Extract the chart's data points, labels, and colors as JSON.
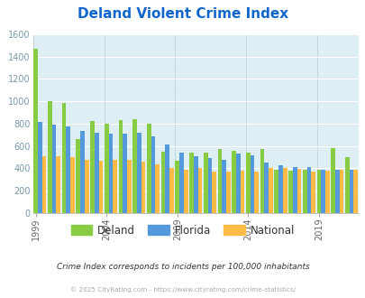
{
  "title": "Deland Violent Crime Index",
  "years": [
    1999,
    2000,
    2001,
    2002,
    2003,
    2004,
    2005,
    2006,
    2007,
    2008,
    2009,
    2010,
    2011,
    2012,
    2013,
    2014,
    2015,
    2016,
    2017,
    2018,
    2019,
    2020,
    2021
  ],
  "deland": [
    1470,
    1005,
    985,
    665,
    825,
    800,
    835,
    840,
    800,
    550,
    465,
    540,
    545,
    575,
    555,
    545,
    575,
    390,
    380,
    390,
    390,
    580,
    500
  ],
  "florida": [
    815,
    795,
    775,
    735,
    720,
    710,
    710,
    720,
    690,
    610,
    540,
    510,
    490,
    480,
    530,
    520,
    455,
    430,
    415,
    410,
    385,
    385,
    385
  ],
  "national": [
    505,
    505,
    500,
    475,
    465,
    475,
    475,
    460,
    435,
    405,
    390,
    400,
    375,
    370,
    380,
    375,
    400,
    405,
    395,
    375,
    380,
    385,
    385
  ],
  "deland_color": "#88cc44",
  "florida_color": "#5599dd",
  "national_color": "#ffbb44",
  "plot_bg": "#ddeef4",
  "ytick_color": "#7799aa",
  "title_color": "#1166cc",
  "xlabel_years": [
    1999,
    2004,
    2009,
    2014,
    2019
  ],
  "ylim": [
    0,
    1600
  ],
  "yticks": [
    0,
    200,
    400,
    600,
    800,
    1000,
    1200,
    1400,
    1600
  ],
  "subtitle": "Crime Index corresponds to incidents per 100,000 inhabitants",
  "footer": "© 2025 CityRating.com - https://www.cityrating.com/crime-statistics/",
  "legend_labels": [
    "Deland",
    "Florida",
    "National"
  ]
}
